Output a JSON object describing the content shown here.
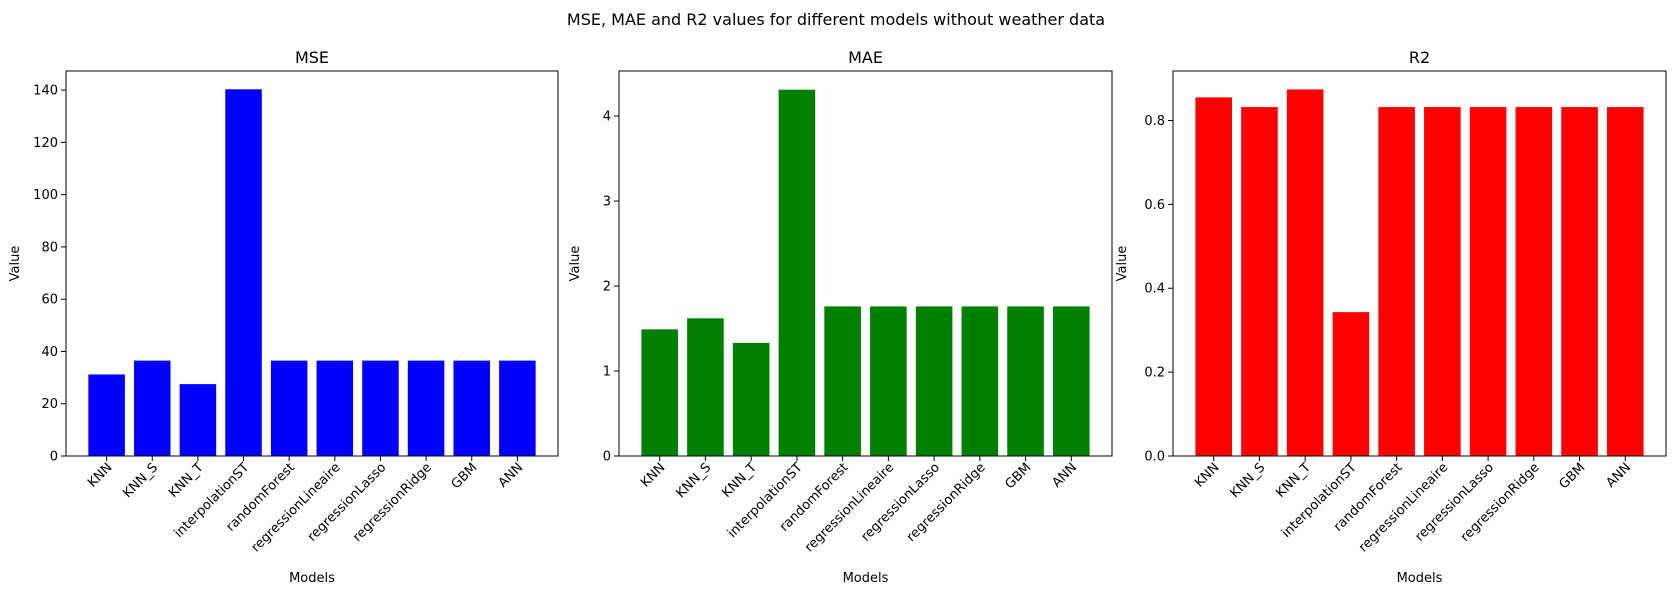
{
  "figure": {
    "suptitle": "MSE, MAE and R2 values for different models without weather data"
  },
  "chart_data": [
    {
      "type": "bar",
      "title": "MSE",
      "xlabel": "Models",
      "ylabel": "Value",
      "categories": [
        "KNN",
        "KNN_S",
        "KNN_T",
        "interpolationST",
        "randomForest",
        "regressionLineaire",
        "regressionLasso",
        "regressionRidge",
        "GBM",
        "ANN"
      ],
      "values": [
        31.2,
        36.5,
        27.5,
        140.3,
        36.5,
        36.5,
        36.5,
        36.5,
        36.5,
        36.5
      ],
      "ylim": [
        0,
        147.3
      ],
      "yticks": [
        0,
        20,
        40,
        60,
        80,
        100,
        120,
        140
      ],
      "ytick_labels": [
        "0",
        "20",
        "40",
        "60",
        "80",
        "100",
        "120",
        "140"
      ],
      "color": "#0000ff",
      "grid": false
    },
    {
      "type": "bar",
      "title": "MAE",
      "xlabel": "Models",
      "ylabel": "Value",
      "categories": [
        "KNN",
        "KNN_S",
        "KNN_T",
        "interpolationST",
        "randomForest",
        "regressionLineaire",
        "regressionLasso",
        "regressionRidge",
        "GBM",
        "ANN"
      ],
      "values": [
        1.49,
        1.62,
        1.33,
        4.31,
        1.76,
        1.76,
        1.76,
        1.76,
        1.76,
        1.76
      ],
      "ylim": [
        0,
        4.53
      ],
      "yticks": [
        0,
        1,
        2,
        3,
        4
      ],
      "ytick_labels": [
        "0",
        "1",
        "2",
        "3",
        "4"
      ],
      "color": "#008000",
      "grid": false
    },
    {
      "type": "bar",
      "title": "R2",
      "xlabel": "Models",
      "ylabel": "Value",
      "categories": [
        "KNN",
        "KNN_S",
        "KNN_T",
        "interpolationST",
        "randomForest",
        "regressionLineaire",
        "regressionLasso",
        "regressionRidge",
        "GBM",
        "ANN"
      ],
      "values": [
        0.855,
        0.832,
        0.874,
        0.343,
        0.832,
        0.832,
        0.832,
        0.832,
        0.832,
        0.832
      ],
      "ylim": [
        0,
        0.918
      ],
      "yticks": [
        0,
        0.2,
        0.4,
        0.6,
        0.8
      ],
      "ytick_labels": [
        "0.0",
        "0.2",
        "0.4",
        "0.6",
        "0.8"
      ],
      "color": "#ff0000",
      "grid": false
    }
  ]
}
